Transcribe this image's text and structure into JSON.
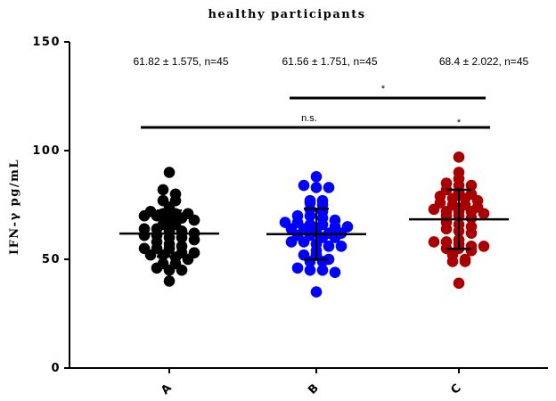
{
  "chart_data": {
    "type": "scatter",
    "title": "healthy participants",
    "xlabel": "",
    "ylabel": "IFN-γ pg/mL",
    "ylim": [
      0,
      150
    ],
    "yticks": [
      0,
      50,
      100,
      150
    ],
    "categories": [
      "A",
      "B",
      "C"
    ],
    "annotations": [
      "61.82 ± 1.575, n=45",
      "61.56 ± 1.751, n=45",
      "68.4 ± 2.022, n=45"
    ],
    "series": [
      {
        "category": "A",
        "color": "#000000",
        "mean": 61.82,
        "sd": 10.6,
        "values": [
          90,
          82,
          80,
          77,
          77,
          74,
          72,
          71,
          71,
          71,
          70,
          70,
          69,
          69,
          68,
          66,
          66,
          64,
          64,
          63,
          63,
          62,
          61,
          61,
          60,
          60,
          59,
          58,
          57,
          56,
          55,
          55,
          55,
          53,
          53,
          52,
          52,
          51,
          50,
          48,
          48,
          46,
          45,
          45,
          40
        ]
      },
      {
        "category": "B",
        "color": "#0000ff",
        "mean": 61.56,
        "sd": 11.7,
        "values": [
          88,
          84,
          83,
          83,
          77,
          77,
          76,
          75,
          73,
          72,
          70,
          70,
          69,
          68,
          67,
          67,
          66,
          66,
          65,
          65,
          64,
          64,
          63,
          62,
          62,
          61,
          61,
          60,
          60,
          58,
          58,
          57,
          56,
          56,
          54,
          52,
          52,
          50,
          49,
          49,
          46,
          45,
          45,
          44,
          35
        ]
      },
      {
        "category": "C",
        "color": "#a80000",
        "mean": 68.4,
        "sd": 13.6,
        "values": [
          97,
          90,
          87,
          85,
          84,
          84,
          82,
          81,
          80,
          79,
          78,
          78,
          77,
          76,
          75,
          75,
          74,
          73,
          72,
          72,
          72,
          71,
          70,
          70,
          69,
          67,
          66,
          65,
          64,
          63,
          62,
          59,
          58,
          58,
          57,
          56,
          56,
          55,
          55,
          54,
          52,
          50,
          49,
          49,
          39
        ]
      }
    ],
    "significance": [
      {
        "groups": [
          "B",
          "C"
        ],
        "label": "*"
      },
      {
        "groups": [
          "A",
          "C"
        ],
        "label": "*"
      },
      {
        "groups": [
          "A",
          "B"
        ],
        "label": "n.s."
      }
    ]
  }
}
